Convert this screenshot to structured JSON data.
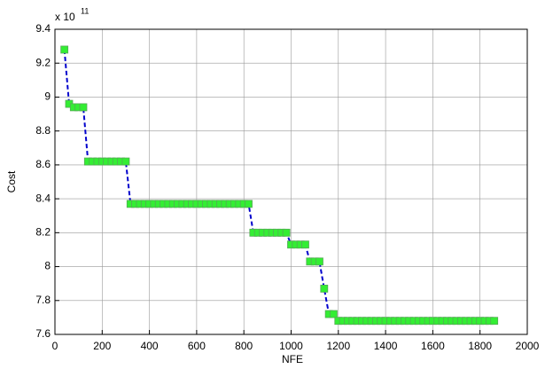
{
  "chart_data": {
    "type": "line",
    "xlabel": "NFE",
    "ylabel": "Cost",
    "y_multiplier": {
      "base": "x 10",
      "exponent": "11"
    },
    "x": [
      40,
      60,
      80,
      100,
      120,
      140,
      160,
      180,
      200,
      220,
      240,
      260,
      280,
      300,
      320,
      340,
      360,
      380,
      400,
      420,
      440,
      460,
      480,
      500,
      520,
      540,
      560,
      580,
      600,
      620,
      640,
      660,
      680,
      700,
      720,
      740,
      760,
      780,
      800,
      820,
      840,
      860,
      880,
      900,
      920,
      940,
      960,
      980,
      1000,
      1020,
      1040,
      1060,
      1080,
      1100,
      1120,
      1140,
      1160,
      1180,
      1200,
      1220,
      1240,
      1260,
      1280,
      1300,
      1320,
      1340,
      1360,
      1380,
      1400,
      1420,
      1440,
      1460,
      1480,
      1500,
      1520,
      1540,
      1560,
      1580,
      1600,
      1620,
      1640,
      1660,
      1680,
      1700,
      1720,
      1740,
      1760,
      1780,
      1800,
      1820,
      1840,
      1860
    ],
    "series": [
      {
        "color": "#0000cc",
        "marker_color": "#33ee33",
        "values": [
          9.28,
          8.96,
          8.94,
          8.94,
          8.94,
          8.62,
          8.62,
          8.62,
          8.62,
          8.62,
          8.62,
          8.62,
          8.62,
          8.62,
          8.37,
          8.37,
          8.37,
          8.37,
          8.37,
          8.37,
          8.37,
          8.37,
          8.37,
          8.37,
          8.37,
          8.37,
          8.37,
          8.37,
          8.37,
          8.37,
          8.37,
          8.37,
          8.37,
          8.37,
          8.37,
          8.37,
          8.37,
          8.37,
          8.37,
          8.37,
          8.2,
          8.2,
          8.2,
          8.2,
          8.2,
          8.2,
          8.2,
          8.2,
          8.13,
          8.13,
          8.13,
          8.13,
          8.03,
          8.03,
          8.03,
          7.87,
          7.72,
          7.72,
          7.68,
          7.68,
          7.68,
          7.68,
          7.68,
          7.68,
          7.68,
          7.68,
          7.68,
          7.68,
          7.68,
          7.68,
          7.68,
          7.68,
          7.68,
          7.68,
          7.68,
          7.68,
          7.68,
          7.68,
          7.68,
          7.68,
          7.68,
          7.68,
          7.68,
          7.68,
          7.68,
          7.68,
          7.68,
          7.68,
          7.68,
          7.68,
          7.68,
          7.68
        ]
      }
    ],
    "xlim": [
      0,
      2000
    ],
    "xticks": [
      0,
      200,
      400,
      600,
      800,
      1000,
      1200,
      1400,
      1600,
      1800,
      2000
    ],
    "ylim": [
      7.6,
      9.4
    ],
    "yticks": [
      7.6,
      7.8,
      8,
      8.2,
      8.4,
      8.6,
      8.8,
      9,
      9.2,
      9.4
    ],
    "grid": true
  }
}
